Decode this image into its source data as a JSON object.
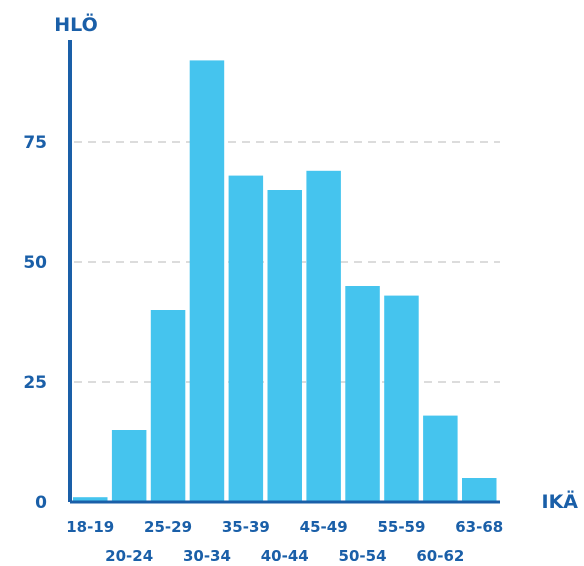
{
  "chart_data": {
    "type": "bar",
    "ylabel": "HLÖ",
    "xlabel": "IKÄ",
    "categories": [
      "18-19",
      "20-24",
      "25-29",
      "30-34",
      "35-39",
      "40-44",
      "45-49",
      "50-54",
      "55-59",
      "60-62",
      "63-68"
    ],
    "values": [
      1,
      15,
      40,
      92,
      68,
      65,
      69,
      45,
      43,
      18,
      5
    ],
    "ylim": [
      0,
      100
    ],
    "yticks": [
      0,
      25,
      50,
      75
    ],
    "grid": true,
    "legend": "none"
  },
  "colors": {
    "bar": "#45C4EE",
    "axis": "#1A5FA8",
    "text": "#1A5FA8",
    "grid": "#DCDCDC"
  }
}
